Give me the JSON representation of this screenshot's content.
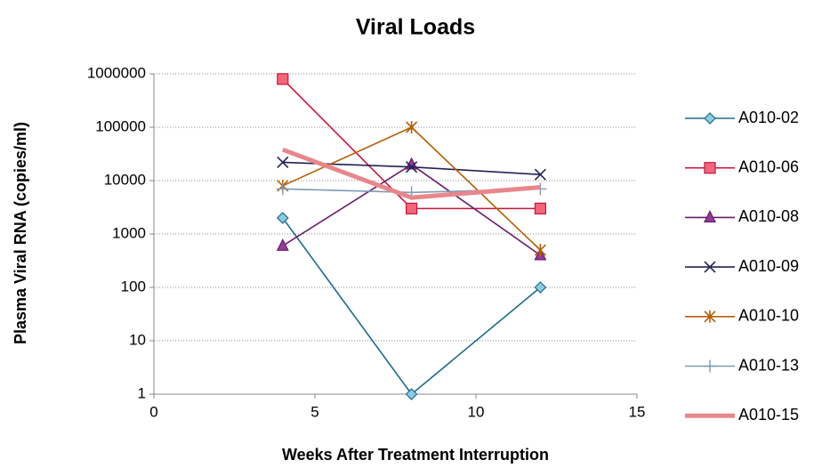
{
  "chart_data": {
    "type": "line",
    "title": "Viral Loads",
    "x_label": "Weeks After Treatment Interruption",
    "y_label": "Plasma Viral RNA (copies/ml)",
    "x": [
      4,
      8,
      12
    ],
    "xlim": [
      0,
      15
    ],
    "xticks": [
      0,
      5,
      10,
      15
    ],
    "ylim": [
      1,
      1000000
    ],
    "yticks": [
      1,
      10,
      100,
      1000,
      10000,
      100000,
      1000000
    ],
    "log_y": true,
    "grid": true,
    "legend": "right",
    "series": [
      {
        "name": "A010-02",
        "color": "#1f6b8a",
        "fill": "#8ccbe0",
        "marker": "diamond",
        "values": [
          2000,
          1,
          100
        ]
      },
      {
        "name": "A010-06",
        "color": "#c8163e",
        "fill": "#f2667a",
        "marker": "square",
        "values": [
          800000,
          3000,
          3000
        ]
      },
      {
        "name": "A010-08",
        "color": "#6a1b6e",
        "fill": "#8e3f94",
        "marker": "triangle",
        "values": [
          600,
          20000,
          400
        ]
      },
      {
        "name": "A010-09",
        "color": "#222255",
        "fill": "#222255",
        "marker": "x",
        "values": [
          22000,
          18000,
          13000
        ]
      },
      {
        "name": "A010-10",
        "color": "#b45f06",
        "fill": "#b45f06",
        "marker": "asterisk",
        "values": [
          8000,
          100000,
          500
        ]
      },
      {
        "name": "A010-13",
        "color": "#7f9bb4",
        "fill": "#7f9bb4",
        "marker": "plus",
        "values": [
          7000,
          6000,
          7000
        ]
      },
      {
        "name": "A010-15",
        "color": "#e8878b",
        "fill": "#e8878b",
        "marker": "none",
        "width": 5,
        "values": [
          38000,
          4800,
          7500
        ]
      }
    ]
  }
}
